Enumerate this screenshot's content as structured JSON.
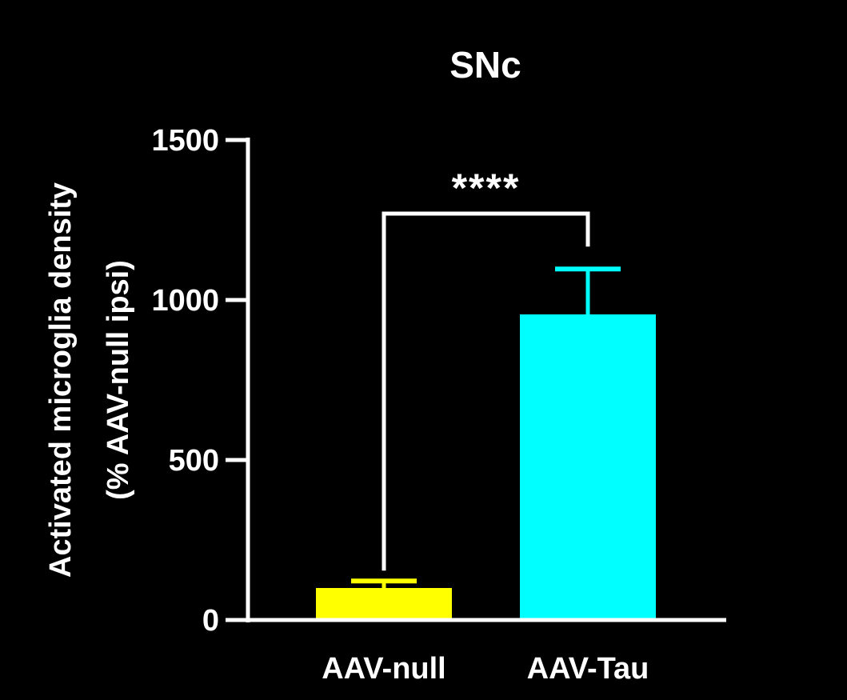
{
  "chart_data": {
    "type": "bar",
    "title": "SNc",
    "ylabel_line1": "Activated microglia density",
    "ylabel_line2": "(% AAV-null ipsi)",
    "xlabel": "",
    "categories": [
      "AAV-null",
      "AAV-Tau"
    ],
    "values": [
      100,
      955
    ],
    "error_upper": [
      122,
      1097
    ],
    "colors": [
      "#ffff00",
      "#00ffff"
    ],
    "ylim": [
      0,
      1500
    ],
    "yticks": [
      0,
      500,
      1000,
      1500
    ],
    "grid": false,
    "background": "#000000",
    "axis_color": "#ffffff",
    "significance": {
      "between": [
        "AAV-null",
        "AAV-Tau"
      ],
      "label": "****"
    }
  }
}
